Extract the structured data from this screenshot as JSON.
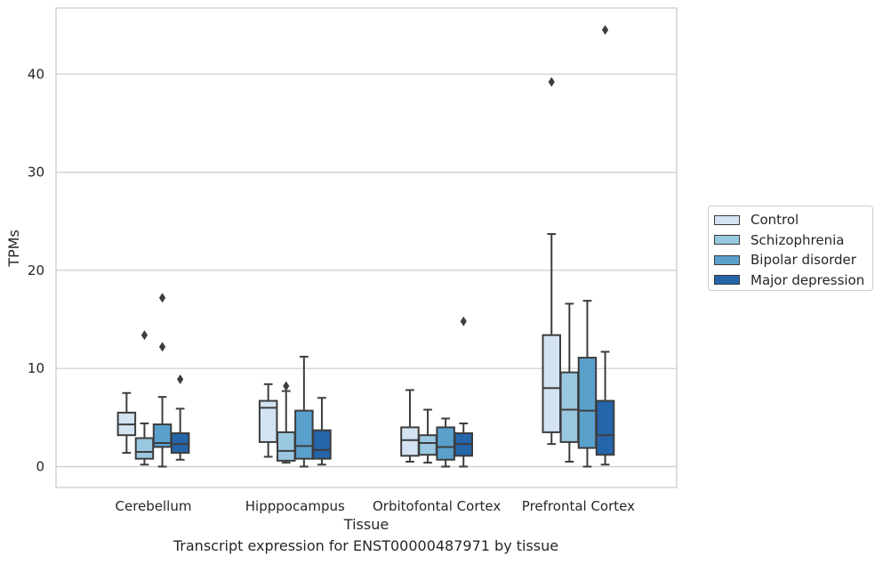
{
  "chart_data": {
    "type": "box",
    "caption": "Transcript expression for ENST00000487971 by tissue",
    "xlabel": "Tissue",
    "ylabel": "TPMs",
    "ylim": [
      -2.1,
      46.8
    ],
    "yticks": [
      0,
      10,
      20,
      30,
      40
    ],
    "grid": true,
    "legend_position": "right-outside",
    "categories": [
      "Cerebellum",
      "Hipppocampus",
      "Orbitofontal Cortex",
      "Prefrontal Cortex"
    ],
    "series": [
      {
        "name": "Control",
        "color": "#d3e3f1",
        "boxes": [
          {
            "whislo": 1.4,
            "q1": 3.2,
            "med": 4.3,
            "q3": 5.5,
            "whishi": 7.5,
            "fliers": []
          },
          {
            "whislo": 1.0,
            "q1": 2.5,
            "med": 6.0,
            "q3": 6.7,
            "whishi": 8.4,
            "fliers": []
          },
          {
            "whislo": 0.5,
            "q1": 1.1,
            "med": 2.7,
            "q3": 4.0,
            "whishi": 7.8,
            "fliers": []
          },
          {
            "whislo": 2.3,
            "q1": 3.5,
            "med": 8.0,
            "q3": 13.4,
            "whishi": 23.7,
            "fliers": [
              39.2
            ]
          }
        ]
      },
      {
        "name": "Schizophrenia",
        "color": "#9ac8e0",
        "boxes": [
          {
            "whislo": 0.2,
            "q1": 0.8,
            "med": 1.5,
            "q3": 2.9,
            "whishi": 4.4,
            "fliers": [
              13.4
            ]
          },
          {
            "whislo": 0.4,
            "q1": 0.6,
            "med": 1.6,
            "q3": 3.5,
            "whishi": 7.7,
            "fliers": [
              8.2
            ]
          },
          {
            "whislo": 0.4,
            "q1": 1.2,
            "med": 2.4,
            "q3": 3.2,
            "whishi": 5.8,
            "fliers": []
          },
          {
            "whislo": 0.5,
            "q1": 2.5,
            "med": 5.8,
            "q3": 9.6,
            "whishi": 16.6,
            "fliers": []
          }
        ]
      },
      {
        "name": "Bipolar disorder",
        "color": "#5aa0cd",
        "boxes": [
          {
            "whislo": 0.0,
            "q1": 2.0,
            "med": 2.4,
            "q3": 4.3,
            "whishi": 7.1,
            "fliers": [
              12.2,
              17.2
            ]
          },
          {
            "whislo": 0.0,
            "q1": 0.8,
            "med": 2.1,
            "q3": 5.7,
            "whishi": 11.2,
            "fliers": []
          },
          {
            "whislo": 0.0,
            "q1": 0.7,
            "med": 2.0,
            "q3": 4.0,
            "whishi": 4.9,
            "fliers": []
          },
          {
            "whislo": 0.0,
            "q1": 1.9,
            "med": 5.7,
            "q3": 11.1,
            "whishi": 16.9,
            "fliers": []
          }
        ]
      },
      {
        "name": "Major depression",
        "color": "#2565aa",
        "boxes": [
          {
            "whislo": 0.7,
            "q1": 1.4,
            "med": 2.3,
            "q3": 3.4,
            "whishi": 5.9,
            "fliers": [
              8.9
            ]
          },
          {
            "whislo": 0.2,
            "q1": 0.8,
            "med": 1.7,
            "q3": 3.7,
            "whishi": 7.0,
            "fliers": []
          },
          {
            "whislo": 0.0,
            "q1": 1.1,
            "med": 2.3,
            "q3": 3.4,
            "whishi": 4.4,
            "fliers": [
              14.8
            ]
          },
          {
            "whislo": 0.2,
            "q1": 1.2,
            "med": 3.2,
            "q3": 6.7,
            "whishi": 11.7,
            "fliers": [
              44.5
            ]
          }
        ]
      }
    ]
  }
}
